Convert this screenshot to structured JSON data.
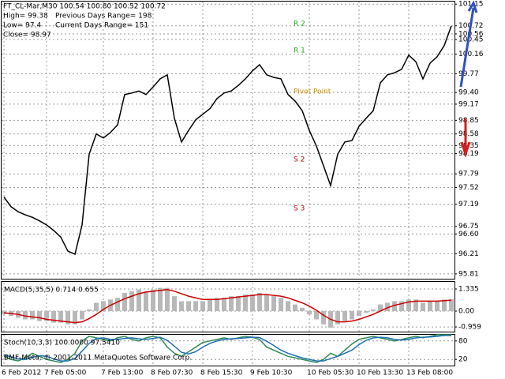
{
  "chart_data": [
    {
      "type": "line",
      "title": "FT_CL-Mar,M30  100.54 100.80 100.52 100.72",
      "info_lines": [
        "High= 99.38",
        "Previous Days Range= 198",
        "Low= 97.4",
        "Current Days Range= 151",
        "Close= 98.97"
      ],
      "annotations": [
        "R 2",
        "R 1",
        "Pivot Point",
        "S 2",
        "S 3"
      ],
      "categories": [
        "6 Feb 2012",
        null,
        null,
        null,
        null,
        null,
        "7 Feb 05:00",
        null,
        null,
        null,
        null,
        null,
        null,
        null,
        "7 Feb 13:00",
        null,
        null,
        null,
        null,
        null,
        null,
        "8 Feb 07:30",
        null,
        null,
        null,
        null,
        null,
        null,
        "8 Feb 15:30",
        null,
        null,
        null,
        null,
        null,
        null,
        "9 Feb 10:30",
        null,
        null,
        null,
        null,
        null,
        null,
        null,
        "10 Feb 05:30",
        null,
        null,
        null,
        null,
        null,
        null,
        "10 Feb 13:30",
        null,
        null,
        null,
        null,
        null,
        null,
        "13 Feb 08:00",
        null,
        null,
        null,
        null,
        null,
        null
      ],
      "series": [
        {
          "color": "#000000",
          "values": [
            97.33,
            97.14,
            97.04,
            96.98,
            96.93,
            96.86,
            96.78,
            96.67,
            96.54,
            96.26,
            96.2,
            96.78,
            98.18,
            98.58,
            98.5,
            98.61,
            98.76,
            99.36,
            99.39,
            99.43,
            99.36,
            99.51,
            99.67,
            99.75,
            98.89,
            98.42,
            98.65,
            98.86,
            98.97,
            99.08,
            99.28,
            99.39,
            99.43,
            99.54,
            99.67,
            99.83,
            99.95,
            99.75,
            99.7,
            99.67,
            99.36,
            99.23,
            99.04,
            98.65,
            98.34,
            97.95,
            97.56,
            98.18,
            98.42,
            98.45,
            98.73,
            98.89,
            99.04,
            99.59,
            99.75,
            99.79,
            99.86,
            100.14,
            100.01,
            99.67,
            99.98,
            100.11,
            100.33,
            100.72
          ]
        }
      ],
      "ylim": [
        95.73,
        101.2
      ],
      "yticks": [
        101.15,
        100.72,
        100.56,
        100.45,
        100.16,
        99.77,
        {
          "value": 99.4,
          "label": "99.40"
        },
        99.17,
        98.85,
        98.58,
        98.35,
        98.19,
        97.79,
        97.52,
        97.19,
        96.75,
        {
          "value": 96.6,
          "label": "96.60"
        },
        96.21,
        95.81
      ],
      "grid": true
    },
    {
      "type": "bar",
      "title": "MACD(5,35,5) 0.714 0.655",
      "series": [
        {
          "style": "bar",
          "color": "#b8b8b8",
          "values": [
            -0.2,
            -0.3,
            -0.4,
            -0.5,
            -0.5,
            -0.6,
            -0.6,
            -0.7,
            -0.7,
            -0.8,
            -0.8,
            -0.5,
            0.1,
            0.5,
            0.6,
            0.7,
            0.8,
            1.1,
            1.2,
            1.3,
            1.2,
            1.3,
            1.4,
            1.4,
            0.9,
            0.6,
            0.6,
            0.6,
            0.6,
            0.7,
            0.8,
            0.8,
            0.9,
            0.9,
            1.0,
            1.0,
            1.1,
            1.0,
            0.9,
            0.8,
            0.6,
            0.4,
            0.2,
            -0.2,
            -0.5,
            -0.8,
            -1.0,
            -0.8,
            -0.6,
            -0.5,
            -0.3,
            -0.1,
            0.1,
            0.4,
            0.5,
            0.6,
            0.6,
            0.7,
            0.7,
            0.5,
            0.6,
            0.6,
            0.7,
            0.714
          ]
        },
        {
          "style": "line",
          "color": "#cc0000",
          "values": [
            -0.1,
            -0.15,
            -0.2,
            -0.3,
            -0.35,
            -0.4,
            -0.5,
            -0.55,
            -0.6,
            -0.65,
            -0.7,
            -0.65,
            -0.45,
            -0.2,
            0.1,
            0.35,
            0.55,
            0.75,
            0.9,
            1.05,
            1.15,
            1.2,
            1.25,
            1.3,
            1.2,
            1.05,
            0.9,
            0.8,
            0.7,
            0.7,
            0.7,
            0.75,
            0.8,
            0.85,
            0.9,
            0.95,
            1.0,
            1.0,
            0.95,
            0.9,
            0.8,
            0.65,
            0.5,
            0.3,
            0.05,
            -0.25,
            -0.5,
            -0.65,
            -0.65,
            -0.6,
            -0.5,
            -0.35,
            -0.2,
            0,
            0.2,
            0.35,
            0.45,
            0.55,
            0.6,
            0.6,
            0.6,
            0.6,
            0.63,
            0.655
          ]
        }
      ],
      "ylim": [
        -1.24,
        1.716
      ],
      "yticks": [
        1.335,
        {
          "value": 0,
          "label": "0.00"
        },
        -0.959
      ]
    },
    {
      "type": "line",
      "title": "Stoch(10,3,3) 100.0000 97.5410",
      "footer": "BMF-Meta, © 2001-2011 MetaQuotes Software Corp.",
      "series": [
        {
          "color": "#2e8b57",
          "values": [
            30,
            20,
            15,
            25,
            40,
            30,
            20,
            15,
            10,
            20,
            40,
            80,
            95,
            90,
            85,
            80,
            90,
            95,
            85,
            80,
            90,
            95,
            90,
            60,
            40,
            30,
            45,
            60,
            75,
            80,
            85,
            90,
            85,
            90,
            95,
            92,
            85,
            60,
            50,
            40,
            30,
            25,
            20,
            15,
            10,
            20,
            40,
            30,
            50,
            70,
            85,
            90,
            95,
            90,
            85,
            80,
            85,
            90,
            95,
            90,
            95,
            100,
            100,
            100
          ]
        },
        {
          "color": "#1e6fb0",
          "values": [
            35,
            28,
            22,
            20,
            27,
            32,
            30,
            22,
            15,
            15,
            23,
            47,
            72,
            88,
            90,
            85,
            85,
            88,
            90,
            87,
            85,
            88,
            92,
            82,
            63,
            43,
            38,
            45,
            60,
            72,
            80,
            85,
            87,
            88,
            90,
            92,
            91,
            79,
            65,
            50,
            40,
            32,
            25,
            20,
            15,
            15,
            23,
            30,
            40,
            50,
            68,
            82,
            90,
            92,
            90,
            85,
            83,
            85,
            90,
            92,
            93,
            95,
            98,
            97.541
          ]
        }
      ],
      "ylim": [
        0,
        100
      ],
      "yticks": [
        80,
        20
      ]
    }
  ]
}
